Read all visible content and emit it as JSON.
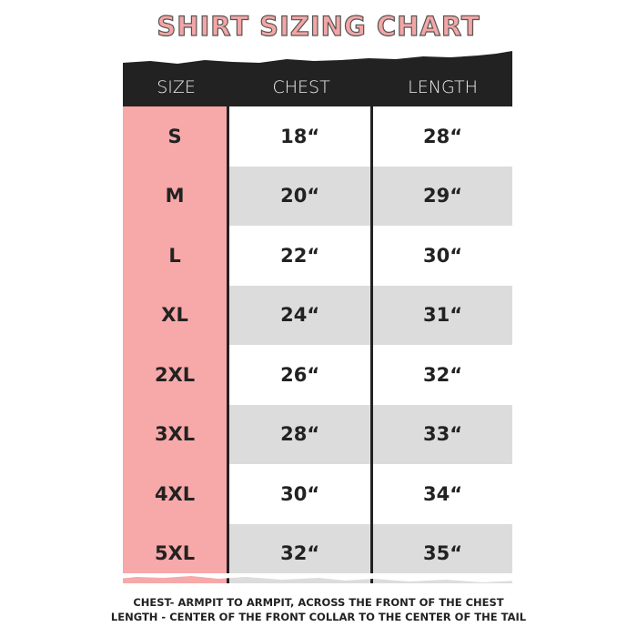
{
  "title": "SHIRT SIZING CHART",
  "headers": [
    "SIZE",
    "CHEST",
    "LENGTH"
  ],
  "rows": [
    {
      "size": "S",
      "chest": "18“",
      "length": "28“"
    },
    {
      "size": "M",
      "chest": "20“",
      "length": "29“"
    },
    {
      "size": "L",
      "chest": "22“",
      "length": "30“"
    },
    {
      "size": "XL",
      "chest": "24“",
      "length": "31“"
    },
    {
      "size": "2XL",
      "chest": "26“",
      "length": "32“"
    },
    {
      "size": "3XL",
      "chest": "28“",
      "length": "33“"
    },
    {
      "size": "4XL",
      "chest": "30“",
      "length": "34“"
    },
    {
      "size": "5XL",
      "chest": "32“",
      "length": "35“"
    }
  ],
  "notes": [
    "CHEST- ARMPIT TO ARMPIT, ACROSS THE FRONT OF THE CHEST",
    "LENGTH - CENTER OF THE FRONT COLLAR TO THE CENTER OF THE TAIL"
  ],
  "colors": {
    "accent": "#f7a8a8",
    "header": "#222222",
    "stripe": "#dcdcdc"
  }
}
